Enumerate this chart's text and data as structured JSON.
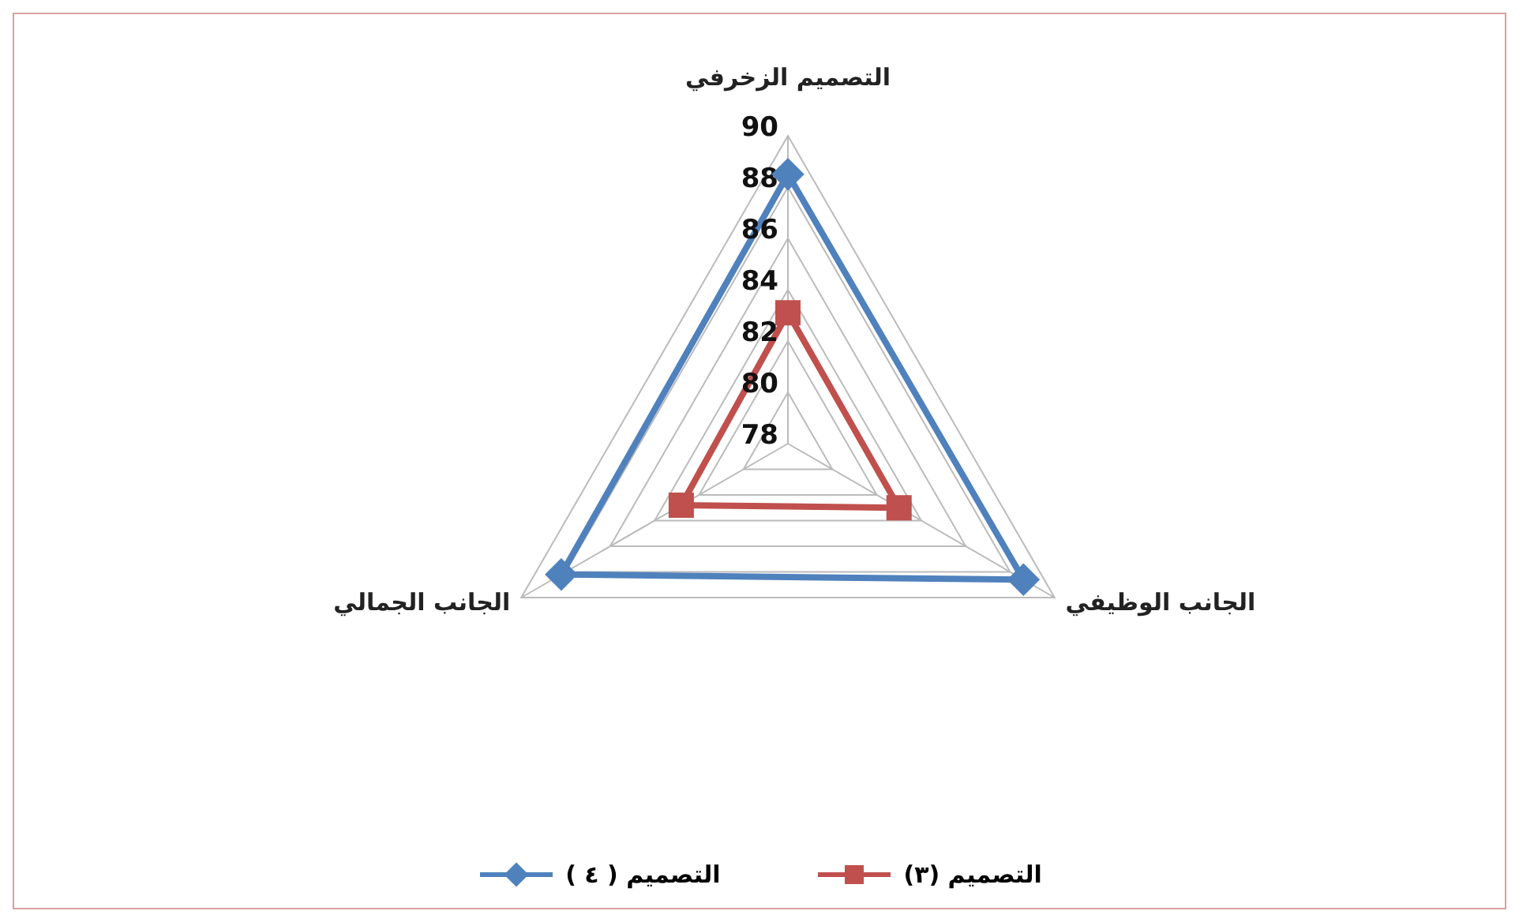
{
  "chart_data": {
    "type": "radar",
    "categories": [
      "التصميم الزخرفي",
      "الجانب الوظيفي",
      "الجانب الجمالي"
    ],
    "ylim": [
      78,
      90
    ],
    "yticks": [
      78,
      80,
      82,
      84,
      86,
      88,
      90
    ],
    "grid": true,
    "legend": "bottom",
    "series": [
      {
        "name": "التصميم (٣)",
        "color": "#c0504d",
        "values": [
          83.1,
          83,
          82.8
        ],
        "marker": "square"
      },
      {
        "name": "التصميم ( ٤ )",
        "color": "#4f81bd",
        "values": [
          88.5,
          88.6,
          88.2
        ],
        "marker": "diamond"
      }
    ]
  }
}
